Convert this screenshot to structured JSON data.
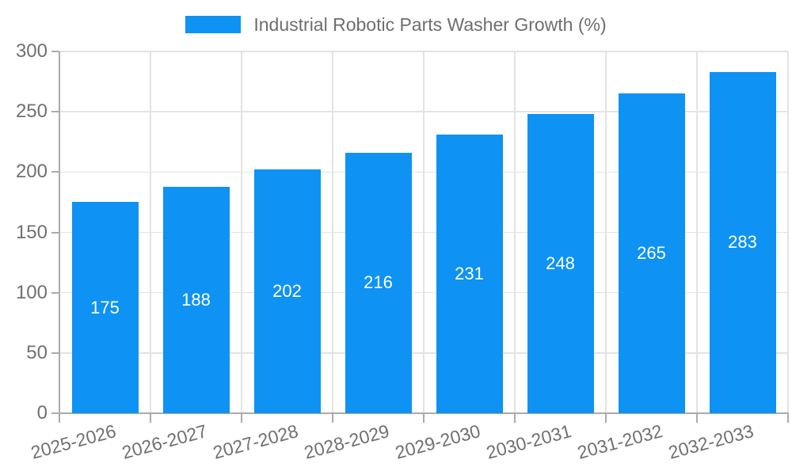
{
  "chart_data": {
    "type": "bar",
    "title": "Industrial Robotic Parts Washer Growth (%)",
    "categories": [
      "2025-2026",
      "2026-2027",
      "2027-2028",
      "2028-2029",
      "2029-2030",
      "2030-2031",
      "2031-2032",
      "2032-2033"
    ],
    "values": [
      175,
      188,
      202,
      216,
      231,
      248,
      265,
      283
    ],
    "xlabel": "",
    "ylabel": "",
    "ylim": [
      0,
      300
    ],
    "yticks": [
      0,
      50,
      100,
      150,
      200,
      250,
      300
    ],
    "legend_position": "top",
    "grid": true,
    "x_tick_rotation_deg": -15,
    "colors": {
      "bar": "#0E92F4",
      "value_label": "#FFFFFF",
      "grid": "#E3E3E3",
      "axis": "#ABABAB",
      "tick_label": "#707070",
      "legend_text": "#6E6E6E",
      "background": "#FFFFFF"
    }
  }
}
